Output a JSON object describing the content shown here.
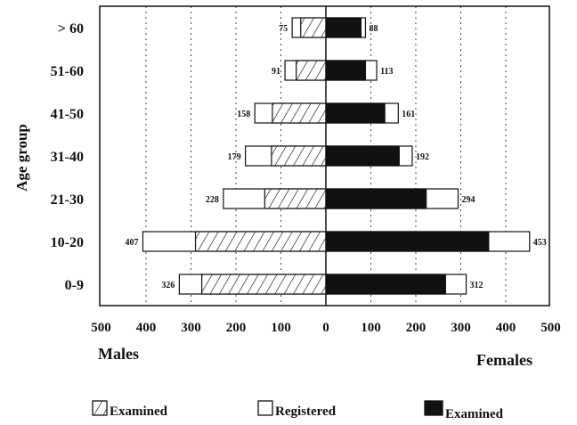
{
  "chart_data": {
    "type": "bar",
    "orientation": "horizontal",
    "layout": "population-pyramid",
    "ylabel": "Age group",
    "categories": [
      "> 60",
      "51-60",
      "41-50",
      "31-40",
      "21-30",
      "10-20",
      "0-9"
    ],
    "xticks": [
      "500",
      "400",
      "300",
      "200",
      "100",
      "0",
      "100",
      "200",
      "300",
      "400",
      "500"
    ],
    "xlim": [
      -500,
      500
    ],
    "males_label": "Males",
    "females_label": "Females",
    "grid": "vertical-dotted",
    "legend_position": "bottom",
    "series": [
      {
        "side": "male",
        "kind": "registered",
        "values": [
          75,
          91,
          158,
          179,
          228,
          407,
          326
        ],
        "labels": [
          "75",
          "91",
          "158",
          "179",
          "228",
          "407",
          "326"
        ]
      },
      {
        "side": "male",
        "kind": "examined",
        "values": [
          56,
          66,
          119,
          121,
          136,
          290,
          276
        ]
      },
      {
        "side": "female",
        "kind": "registered",
        "values": [
          88,
          113,
          161,
          192,
          294,
          453,
          312
        ],
        "labels": [
          "88",
          "113",
          "161",
          "192",
          "294",
          "453",
          "312"
        ]
      },
      {
        "side": "female",
        "kind": "examined",
        "values": [
          78,
          88,
          131,
          163,
          223,
          362,
          266
        ]
      }
    ],
    "legend": [
      {
        "pattern": "hatched",
        "label": "Examined"
      },
      {
        "pattern": "open",
        "label": "Registered"
      },
      {
        "pattern": "solid",
        "label": "Examined"
      }
    ]
  }
}
